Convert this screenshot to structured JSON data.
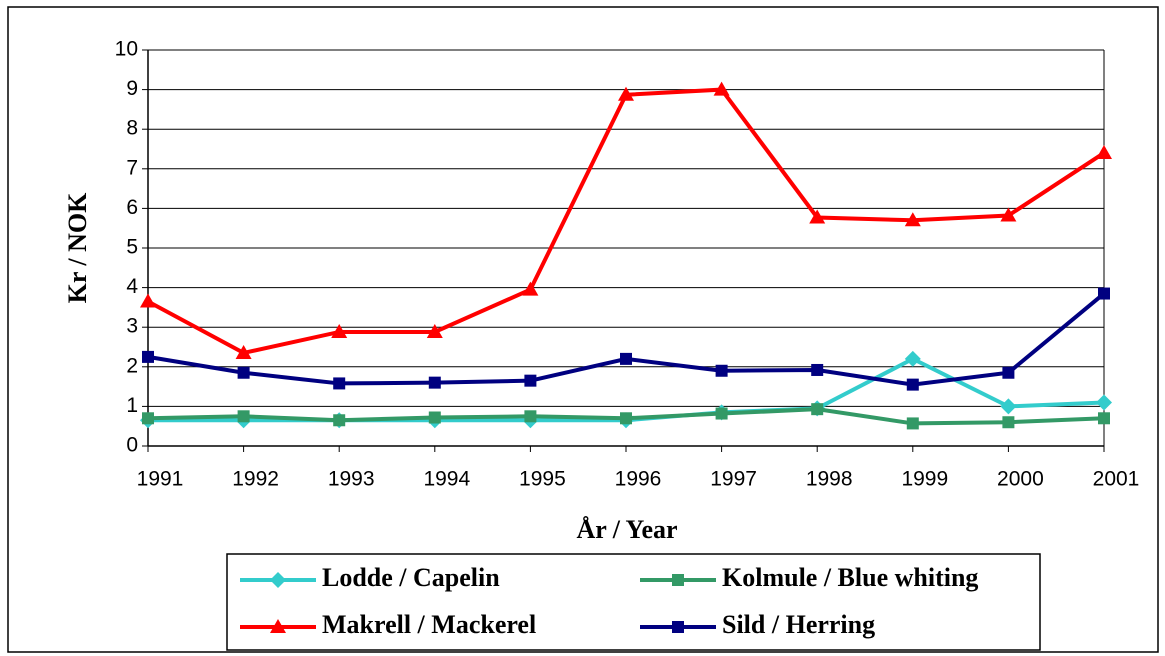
{
  "chart_data": {
    "type": "line",
    "x": [
      1991,
      1992,
      1993,
      1994,
      1995,
      1996,
      1997,
      1998,
      1999,
      2000,
      2001
    ],
    "xlim": [
      1991,
      2001
    ],
    "xticks": [
      1991,
      1992,
      1993,
      1994,
      1995,
      1996,
      1997,
      1998,
      1999,
      2000,
      2001
    ],
    "ylim": [
      0,
      10
    ],
    "yticks": [
      0,
      1,
      2,
      3,
      4,
      5,
      6,
      7,
      8,
      9,
      10
    ],
    "grid": true,
    "xlabel": "År / Year",
    "ylabel": "Kr / NOK",
    "legend": "bottom",
    "series": [
      {
        "name": "Lodde / Capelin",
        "color": "#33cccc",
        "marker": "diamond",
        "values": [
          0.65,
          0.65,
          0.65,
          0.65,
          0.65,
          0.65,
          0.85,
          0.95,
          2.2,
          1.0,
          1.1
        ]
      },
      {
        "name": "Kolmule / Blue whiting",
        "color": "#339966",
        "marker": "square",
        "values": [
          0.7,
          0.75,
          0.65,
          0.72,
          0.75,
          0.7,
          0.82,
          0.93,
          0.57,
          0.6,
          0.7
        ]
      },
      {
        "name": "Makrell / Mackerel",
        "color": "#ff0000",
        "marker": "triangle",
        "values": [
          3.65,
          2.35,
          2.88,
          2.88,
          3.95,
          8.87,
          9.0,
          5.77,
          5.7,
          5.82,
          7.4
        ]
      },
      {
        "name": "Sild / Herring",
        "color": "#000080",
        "marker": "square",
        "values": [
          2.25,
          1.85,
          1.58,
          1.6,
          1.65,
          2.2,
          1.9,
          1.92,
          1.55,
          1.85,
          3.85
        ]
      }
    ]
  }
}
